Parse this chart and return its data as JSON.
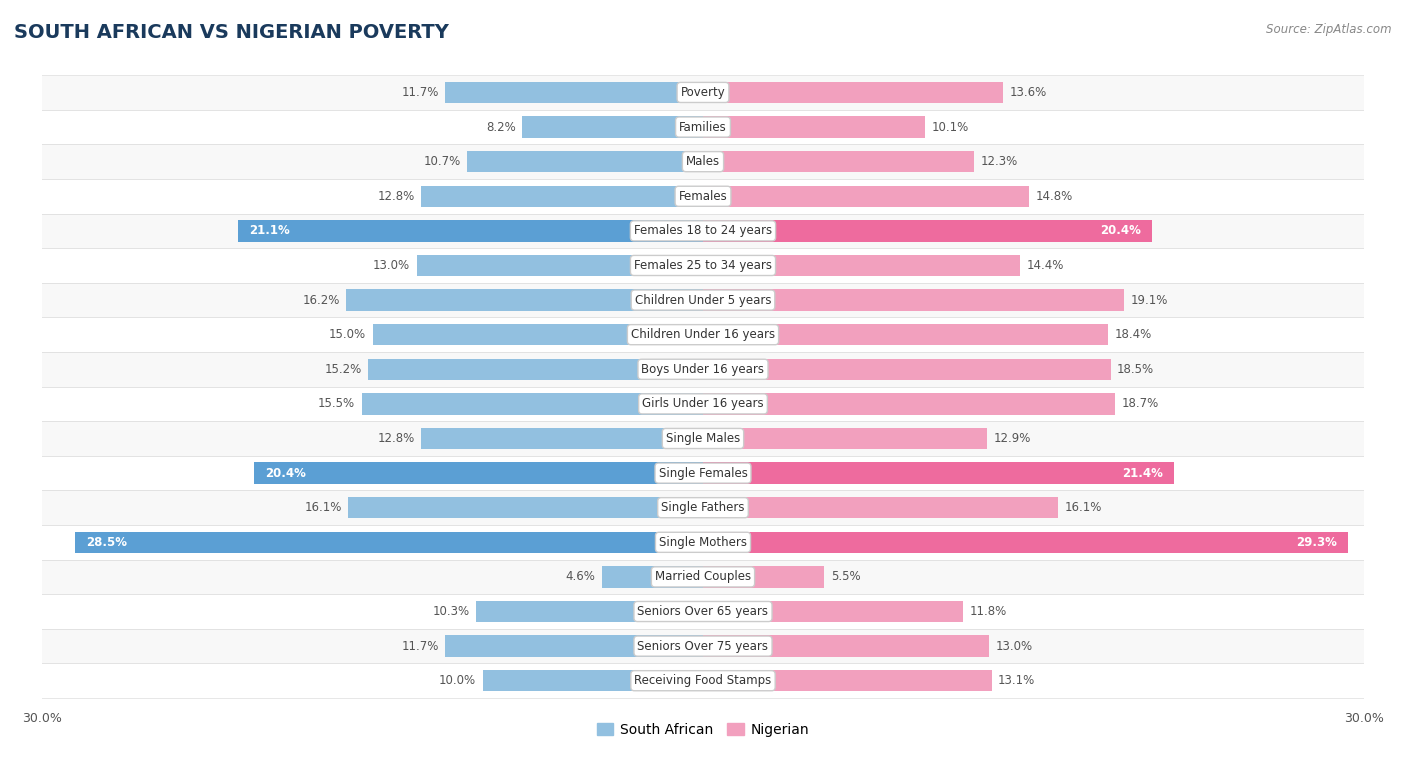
{
  "title": "SOUTH AFRICAN VS NIGERIAN POVERTY",
  "source": "Source: ZipAtlas.com",
  "categories": [
    "Poverty",
    "Families",
    "Males",
    "Females",
    "Females 18 to 24 years",
    "Females 25 to 34 years",
    "Children Under 5 years",
    "Children Under 16 years",
    "Boys Under 16 years",
    "Girls Under 16 years",
    "Single Males",
    "Single Females",
    "Single Fathers",
    "Single Mothers",
    "Married Couples",
    "Seniors Over 65 years",
    "Seniors Over 75 years",
    "Receiving Food Stamps"
  ],
  "south_african": [
    11.7,
    8.2,
    10.7,
    12.8,
    21.1,
    13.0,
    16.2,
    15.0,
    15.2,
    15.5,
    12.8,
    20.4,
    16.1,
    28.5,
    4.6,
    10.3,
    11.7,
    10.0
  ],
  "nigerian": [
    13.6,
    10.1,
    12.3,
    14.8,
    20.4,
    14.4,
    19.1,
    18.4,
    18.5,
    18.7,
    12.9,
    21.4,
    16.1,
    29.3,
    5.5,
    11.8,
    13.0,
    13.1
  ],
  "sa_color": "#92C0E0",
  "ng_color": "#F2A0BE",
  "sa_highlight_color": "#5B9FD4",
  "ng_highlight_color": "#EE6B9E",
  "highlight_indices": [
    4,
    11,
    13
  ],
  "row_color_even": "#f8f8f8",
  "row_color_odd": "#ffffff",
  "background_color": "#ffffff",
  "xlim": 30.0,
  "bar_height": 0.62,
  "legend_labels": [
    "South African",
    "Nigerian"
  ]
}
